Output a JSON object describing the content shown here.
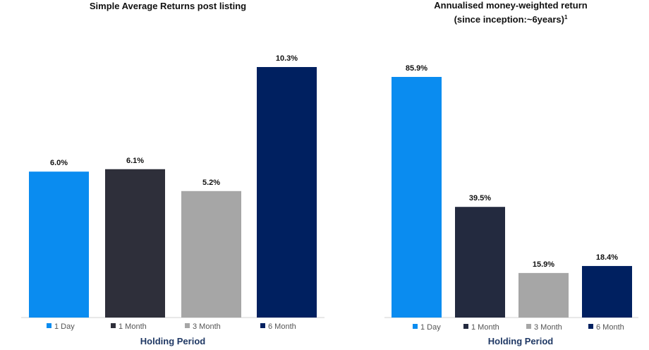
{
  "chart_data": [
    {
      "type": "bar",
      "title": "Simple Average Returns post listing",
      "subtitle": "",
      "xlabel": "Holding Period",
      "ylabel": "",
      "ylim": [
        0,
        12
      ],
      "categories": [
        "1 Day",
        "1 Month",
        "3 Month",
        "6 Month"
      ],
      "values": [
        6.0,
        6.1,
        5.2,
        10.3
      ],
      "data_labels": [
        "6.0%",
        "6.1%",
        "5.2%",
        "10.3%"
      ],
      "colors": [
        "#0a8cf0",
        "#2e2f3a",
        "#a6a6a6",
        "#002060"
      ],
      "legend": [
        "1 Day",
        "1 Month",
        "3 Month",
        "6 Month"
      ],
      "legend_position": "bottom",
      "grid": false
    },
    {
      "type": "bar",
      "title": "Annualised money-weighted return",
      "subtitle": "(since inception:~6years)",
      "subtitle_sup": "1",
      "xlabel": "Holding Period",
      "ylabel": "",
      "ylim": [
        0,
        100
      ],
      "categories": [
        "1 Day",
        "1 Month",
        "3 Month",
        "6 Month"
      ],
      "values": [
        85.9,
        39.5,
        15.9,
        18.4
      ],
      "data_labels": [
        "85.9%",
        "39.5%",
        "15.9%",
        "18.4%"
      ],
      "colors": [
        "#0a8cf0",
        "#232a3f",
        "#a6a6a6",
        "#002060"
      ],
      "legend": [
        "1 Day",
        "1 Month",
        "3 Month",
        "6 Month"
      ],
      "legend_position": "bottom",
      "grid": false
    }
  ]
}
